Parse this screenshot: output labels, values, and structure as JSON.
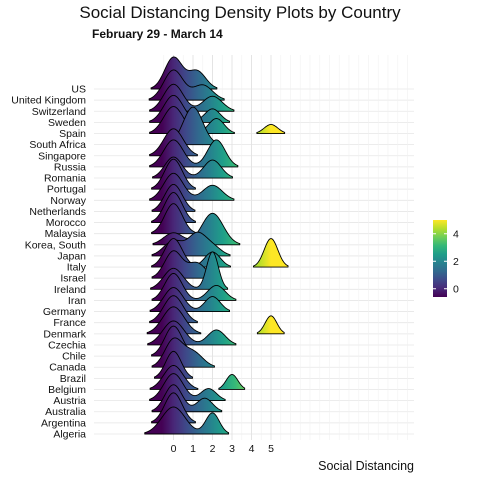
{
  "chart_data": {
    "type": "ridgeline-density",
    "title": "Social Distancing Density Plots by Country",
    "subtitle": "February 29 - March 14",
    "xlabel": "Social Distancing",
    "ylabel": "",
    "x_ticks": [
      0,
      1,
      2,
      3,
      4,
      5
    ],
    "xlim": [
      -1.8,
      12.5
    ],
    "grid": true,
    "legend": {
      "type": "continuous-colorbar",
      "palette": "viridis",
      "range": [
        -0.6,
        5.0
      ],
      "ticks": [
        0,
        2,
        4
      ],
      "placement": "right"
    },
    "countries": [
      {
        "name": "Algeria",
        "peaks": [
          [
            0.0,
            0.6,
            0.9
          ],
          [
            2.0,
            0.35,
            0.7
          ]
        ]
      },
      {
        "name": "Argentina",
        "peaks": [
          [
            0.0,
            0.45,
            1.0
          ]
        ]
      },
      {
        "name": "Australia",
        "peaks": [
          [
            0.0,
            0.45,
            0.9
          ],
          [
            1.6,
            0.4,
            0.45
          ]
        ]
      },
      {
        "name": "Austria",
        "peaks": [
          [
            0.0,
            0.5,
            0.9
          ],
          [
            1.8,
            0.4,
            0.4
          ]
        ]
      },
      {
        "name": "Belgium",
        "peaks": [
          [
            0.0,
            0.5,
            0.8
          ],
          [
            3.0,
            0.3,
            0.5
          ]
        ]
      },
      {
        "name": "Brazil",
        "peaks": [
          [
            0.0,
            0.4,
            0.9
          ]
        ]
      },
      {
        "name": "Canada",
        "peaks": [
          [
            0.0,
            0.45,
            0.9
          ],
          [
            1.0,
            0.5,
            0.5
          ]
        ]
      },
      {
        "name": "Chile",
        "peaks": [
          [
            0.0,
            0.45,
            1.0
          ]
        ]
      },
      {
        "name": "Czechia",
        "peaks": [
          [
            0.0,
            0.55,
            0.8
          ],
          [
            2.2,
            0.45,
            0.5
          ]
        ]
      },
      {
        "name": "Denmark",
        "peaks": [
          [
            0.0,
            0.55,
            0.9
          ],
          [
            5.0,
            0.3,
            0.6
          ]
        ]
      },
      {
        "name": "France",
        "peaks": [
          [
            0.0,
            0.5,
            0.9
          ]
        ]
      },
      {
        "name": "Germany",
        "peaks": [
          [
            0.0,
            0.5,
            0.8
          ],
          [
            2.0,
            0.4,
            0.5
          ]
        ]
      },
      {
        "name": "Iran",
        "peaks": [
          [
            0.0,
            0.45,
            0.9
          ],
          [
            2.2,
            0.45,
            0.5
          ]
        ]
      },
      {
        "name": "Ireland",
        "peaks": [
          [
            0.0,
            0.5,
            0.7
          ],
          [
            2.0,
            0.3,
            1.25
          ]
        ]
      },
      {
        "name": "Israel",
        "peaks": [
          [
            0.0,
            0.45,
            0.9
          ],
          [
            1.2,
            0.45,
            0.5
          ]
        ]
      },
      {
        "name": "Italy",
        "peaks": [
          [
            0.0,
            0.45,
            0.95
          ],
          [
            2.0,
            0.4,
            0.5
          ],
          [
            5.0,
            0.35,
            0.95
          ]
        ]
      },
      {
        "name": "Japan",
        "peaks": [
          [
            0.0,
            0.5,
            0.5
          ],
          [
            1.2,
            0.45,
            0.7
          ],
          [
            2.0,
            0.45,
            0.3
          ]
        ]
      },
      {
        "name": "Korea, South",
        "peaks": [
          [
            0.0,
            0.5,
            0.4
          ],
          [
            2.0,
            0.55,
            1.05
          ]
        ]
      },
      {
        "name": "Malaysia",
        "peaks": [
          [
            0.0,
            0.45,
            1.0
          ]
        ]
      },
      {
        "name": "Morocco",
        "peaks": [
          [
            0.0,
            0.45,
            1.0
          ]
        ]
      },
      {
        "name": "Netherlands",
        "peaks": [
          [
            0.0,
            0.45,
            0.9
          ]
        ]
      },
      {
        "name": "Norway",
        "peaks": [
          [
            0.0,
            0.5,
            0.9
          ],
          [
            2.0,
            0.5,
            0.5
          ]
        ]
      },
      {
        "name": "Portugal",
        "peaks": [
          [
            0.0,
            0.45,
            1.0
          ]
        ]
      },
      {
        "name": "Romania",
        "peaks": [
          [
            0.0,
            0.45,
            0.7
          ],
          [
            2.0,
            0.45,
            0.6
          ]
        ]
      },
      {
        "name": "Russia",
        "peaks": [
          [
            0.0,
            0.5,
            0.9
          ],
          [
            2.2,
            0.45,
            0.9
          ]
        ]
      },
      {
        "name": "Singapore",
        "peaks": [
          [
            0.0,
            0.5,
            0.9
          ]
        ]
      },
      {
        "name": "South Africa",
        "peaks": [
          [
            1.0,
            0.5,
            1.25
          ]
        ]
      },
      {
        "name": "Spain",
        "peaks": [
          [
            0.0,
            0.5,
            0.9
          ],
          [
            2.2,
            0.4,
            0.5
          ],
          [
            5.0,
            0.35,
            0.3
          ]
        ]
      },
      {
        "name": "Sweden",
        "peaks": [
          [
            0.0,
            0.5,
            0.9
          ],
          [
            2.0,
            0.4,
            0.45
          ]
        ]
      },
      {
        "name": "Switzerland",
        "peaks": [
          [
            0.0,
            0.5,
            0.9
          ],
          [
            2.0,
            0.5,
            0.5
          ]
        ]
      },
      {
        "name": "United Kingdom",
        "peaks": [
          [
            0.0,
            0.5,
            1.0
          ],
          [
            1.5,
            0.5,
            0.5
          ]
        ]
      },
      {
        "name": "US",
        "peaks": [
          [
            0.0,
            0.45,
            1.05
          ],
          [
            1.2,
            0.45,
            0.6
          ]
        ]
      }
    ]
  }
}
